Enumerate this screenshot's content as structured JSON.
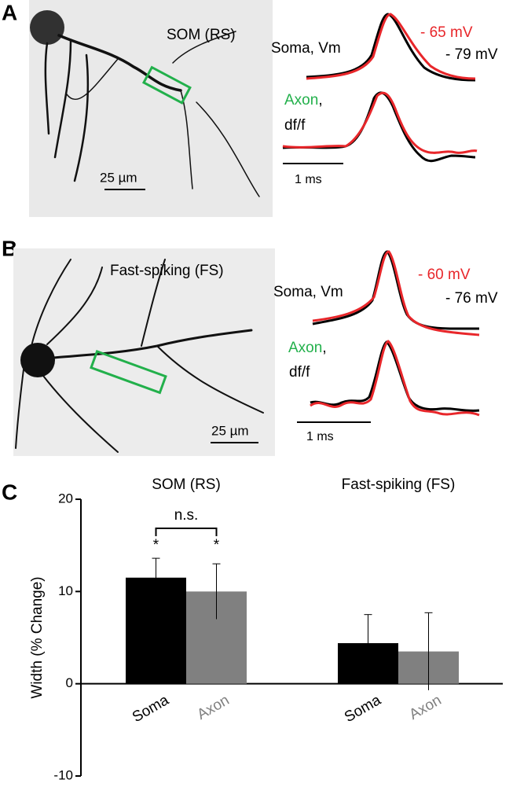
{
  "panels": [
    {
      "label": "A",
      "cell": "SOM (RS)",
      "scale_bar": "25 µm",
      "soma_label": "Soma, Vm",
      "voltages": [
        "- 65 mV",
        "- 79 mV"
      ],
      "axon_label": "Axon",
      "axon_comma": ",",
      "axon_unit": "df/f",
      "time_bar": "1 ms"
    },
    {
      "label": "B",
      "cell": "Fast-spiking (FS)",
      "scale_bar": "25 µm",
      "soma_label": "Soma, Vm",
      "voltages": [
        "- 60 mV",
        "- 76 mV"
      ],
      "axon_label": "Axon",
      "axon_comma": ",",
      "axon_unit": "df/f",
      "time_bar": "1 ms"
    }
  ],
  "chart_data": {
    "type": "bar",
    "label": "C",
    "y_label": "Width (% Change)",
    "categories": [
      "SOM (RS)",
      "Fast-spiking (FS)"
    ],
    "series": [
      {
        "name": "Soma",
        "color": "#000000",
        "values": [
          11.5,
          4.4
        ],
        "errors": [
          2.1,
          3.1
        ]
      },
      {
        "name": "Axon",
        "color": "#808080",
        "values": [
          10,
          3.5
        ],
        "errors": [
          3,
          4.2
        ]
      }
    ],
    "ylim": [
      -10,
      20
    ],
    "yticks": [
      -10,
      0,
      10,
      20
    ],
    "annotations": [
      "n.s.",
      "*",
      "*"
    ]
  }
}
